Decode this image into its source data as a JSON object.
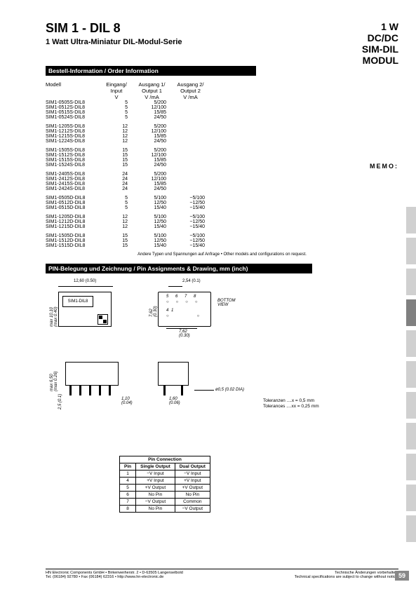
{
  "title": {
    "main": "SIM 1 - DIL 8",
    "sub": "1 Watt Ultra-Miniatur DIL-Modul-Serie",
    "right1": "1 W",
    "right2": "DC/DC",
    "right3": "SIM-DIL",
    "right4": "MODUL"
  },
  "memo": "MEMO:",
  "section1": "Bestell-Information / Order Information",
  "section2": "PIN-Belegung  und Zeichnung / Pin Assignments & Drawing,  mm (inch)",
  "table_headers": {
    "model": "Modell",
    "input": "Eingang/\nInput\nV",
    "out1": "Ausgang 1/\nOutput 1\nV /mA",
    "out2": "Ausgang 2/\nOutput 2\nV /mA"
  },
  "groups": [
    [
      {
        "m": "SIM1-0505S-DIL8",
        "in": "5",
        "o1": "5/200",
        "o2": ""
      },
      {
        "m": "SIM1-0512S-DIL8",
        "in": "5",
        "o1": "12/100",
        "o2": ""
      },
      {
        "m": "SIM1-0515S-DIL8",
        "in": "5",
        "o1": "15/85",
        "o2": ""
      },
      {
        "m": "SIM1-0524S-DIL8",
        "in": "5",
        "o1": "24/50",
        "o2": ""
      }
    ],
    [
      {
        "m": "SIM1-1205S-DIL8",
        "in": "12",
        "o1": "5/200",
        "o2": ""
      },
      {
        "m": "SIM1-1212S-DIL8",
        "in": "12",
        "o1": "12/100",
        "o2": ""
      },
      {
        "m": "SIM1-1215S-DIL8",
        "in": "12",
        "o1": "15/85",
        "o2": ""
      },
      {
        "m": "SIM1-1224S-DIL8",
        "in": "12",
        "o1": "24/50",
        "o2": ""
      }
    ],
    [
      {
        "m": "SIM1-1505S-DIL8",
        "in": "15",
        "o1": "5/200",
        "o2": ""
      },
      {
        "m": "SIM1-1512S-DIL8",
        "in": "15",
        "o1": "12/100",
        "o2": ""
      },
      {
        "m": "SIM1-1515S-DIL8",
        "in": "15",
        "o1": "15/85",
        "o2": ""
      },
      {
        "m": "SIM1-1524S-DIL8",
        "in": "15",
        "o1": "24/50",
        "o2": ""
      }
    ],
    [
      {
        "m": "SIM1-2405S-DIL8",
        "in": "24",
        "o1": "5/200",
        "o2": ""
      },
      {
        "m": "SIM1-2412S-DIL8",
        "in": "24",
        "o1": "12/100",
        "o2": ""
      },
      {
        "m": "SIM1-2415S-DIL8",
        "in": "24",
        "o1": "15/85",
        "o2": ""
      },
      {
        "m": "SIM1-2424S-DIL8",
        "in": "24",
        "o1": "24/50",
        "o2": ""
      }
    ],
    [
      {
        "m": "SIM1-0505D-DIL8",
        "in": "5",
        "o1": "5/100",
        "o2": "−5/100"
      },
      {
        "m": "SIM1-0512D-DIL8",
        "in": "5",
        "o1": "12/50",
        "o2": "−12/50"
      },
      {
        "m": "SIM1-0515D-DIL8",
        "in": "5",
        "o1": "15/40",
        "o2": "−15/40"
      }
    ],
    [
      {
        "m": "SIM1-1205D-DIL8",
        "in": "12",
        "o1": "5/100",
        "o2": "−5/100"
      },
      {
        "m": "SIM1-1212D-DIL8",
        "in": "12",
        "o1": "12/50",
        "o2": "−12/50"
      },
      {
        "m": "SIM1-1215D-DIL8",
        "in": "12",
        "o1": "15/40",
        "o2": "−15/40"
      }
    ],
    [
      {
        "m": "SIM1-1505D-DIL8",
        "in": "15",
        "o1": "5/100",
        "o2": "−5/100"
      },
      {
        "m": "SIM1-1512D-DIL8",
        "in": "15",
        "o1": "12/50",
        "o2": "−12/50"
      },
      {
        "m": "SIM1-1515D-DIL8",
        "in": "15",
        "o1": "15/40",
        "o2": "−15/40"
      }
    ]
  ],
  "footnote1": "Andere Typen und Spannungen auf Anfrage • Other models and configurations on request.",
  "drawing": {
    "dim_w": "12,60 (0.50)",
    "dim_h": "max 10,10",
    "dim_h2": "(max 0.40)",
    "label_top": "SIM1-DIL8",
    "dim_pitch": "2,54 (0.1)",
    "dim_762a": "7,62",
    "dim_762a_in": "(0.30)",
    "dim_762b": "7,62",
    "dim_762b_in": "(0.30)",
    "bottom_view": "BOTTOM\nVIEW",
    "pins1": "5   6   7   8",
    "pins2": "4           1",
    "dim_650": "max 6,50",
    "dim_650_in": "(max 0.26)",
    "dim_25": "2,5 (0.1)",
    "dim_110": "1,10",
    "dim_110_in": "(0.04)",
    "dim_160": "1,60",
    "dim_160_in": "(0.06)",
    "dim_dia": "ø0,5 (0.02 DIA)",
    "tol1": "Toleranzen ....x  = 0,5 mm",
    "tol2": "Tolerances ....xx = 0,25 mm"
  },
  "pin_table": {
    "title": "Pin Connection",
    "h_pin": "Pin",
    "h_single": "Single Output",
    "h_dual": "Dual Output",
    "rows": [
      {
        "p": "1",
        "s": "−V Input",
        "d": "−V Input"
      },
      {
        "p": "4",
        "s": "+V Input",
        "d": "+V Input"
      },
      {
        "p": "5",
        "s": "+V Output",
        "d": "+V Output"
      },
      {
        "p": "6",
        "s": "No Pin",
        "d": "No Pin"
      },
      {
        "p": "7",
        "s": "−V Output",
        "d": "Common"
      },
      {
        "p": "8",
        "s": "No Pin",
        "d": "−V Output"
      }
    ]
  },
  "footer": {
    "left": "HN Electronic Components GmbH • Birkenweiherstr. 2 • D-63505 Langenselbold\nTel. (06184) 92780 • Fax (06184) 62316 • http://www.hn-electronic.de",
    "right": "Technische Änderungen vorbehalten.\nTechnical specifications are subject to change without notice."
  },
  "page_num": "59"
}
